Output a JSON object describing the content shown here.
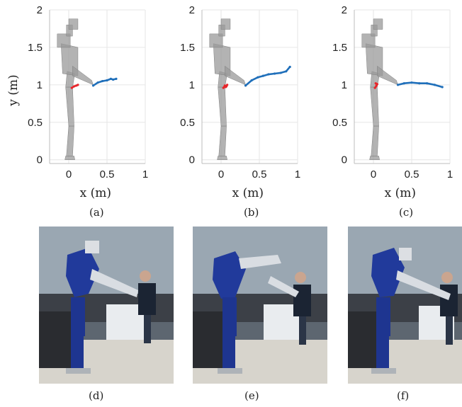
{
  "figure": {
    "captions": [
      "(a)",
      "(b)",
      "(c)",
      "(d)",
      "(e)",
      "(f)"
    ]
  },
  "chart_data": [
    {
      "type": "line",
      "panel": "(a)",
      "xlabel": "x (m)",
      "ylabel": "y (m)",
      "xlim": [
        -0.25,
        1.0
      ],
      "ylim": [
        -0.05,
        2.0
      ],
      "xticks": [
        0,
        0.5,
        1
      ],
      "xtick_labels": [
        "0",
        "0.5",
        "1"
      ],
      "yticks": [
        0,
        0.5,
        1,
        1.5,
        2
      ],
      "ytick_labels": [
        "0",
        "0.5",
        "1",
        "1.5",
        "2"
      ],
      "grid": true,
      "series": [
        {
          "color": "#e8262b",
          "x": [
            0.04,
            0.07,
            0.1,
            0.12
          ],
          "y": [
            0.96,
            0.98,
            0.99,
            1.0
          ]
        },
        {
          "color": "#1f6fba",
          "x": [
            0.32,
            0.38,
            0.44,
            0.5,
            0.55,
            0.58,
            0.62
          ],
          "y": [
            0.99,
            1.03,
            1.05,
            1.06,
            1.08,
            1.07,
            1.08
          ]
        }
      ]
    },
    {
      "type": "line",
      "panel": "(b)",
      "xlabel": "x (m)",
      "ylabel": "",
      "xlim": [
        -0.25,
        1.0
      ],
      "ylim": [
        -0.05,
        2.0
      ],
      "xticks": [
        0,
        0.5,
        1
      ],
      "xtick_labels": [
        "0",
        "0.5",
        "1"
      ],
      "yticks": [
        0,
        0.5,
        1,
        1.5,
        2
      ],
      "ytick_labels": [
        "0",
        "0.5",
        "1",
        "1.5",
        "2"
      ],
      "grid": true,
      "series": [
        {
          "color": "#e8262b",
          "x": [
            0.03,
            0.05,
            0.07,
            0.08,
            0.06
          ],
          "y": [
            0.96,
            0.99,
            0.98,
            1.0,
            0.97
          ]
        },
        {
          "color": "#1f6fba",
          "x": [
            0.32,
            0.4,
            0.48,
            0.55,
            0.62,
            0.7,
            0.78,
            0.85,
            0.9
          ],
          "y": [
            0.99,
            1.06,
            1.1,
            1.12,
            1.14,
            1.15,
            1.16,
            1.18,
            1.24
          ]
        }
      ]
    },
    {
      "type": "line",
      "panel": "(c)",
      "xlabel": "x (m)",
      "ylabel": "",
      "xlim": [
        -0.25,
        1.0
      ],
      "ylim": [
        -0.05,
        2.0
      ],
      "xticks": [
        0,
        0.5,
        1
      ],
      "xtick_labels": [
        "0",
        "0.5",
        "1"
      ],
      "yticks": [
        0,
        0.5,
        1,
        1.5,
        2
      ],
      "ytick_labels": [
        "0",
        "0.5",
        "1",
        "1.5",
        "2"
      ],
      "grid": true,
      "series": [
        {
          "color": "#e8262b",
          "x": [
            0.02,
            0.04,
            0.05,
            0.03
          ],
          "y": [
            0.96,
            0.99,
            1.01,
            1.02
          ]
        },
        {
          "color": "#1f6fba",
          "x": [
            0.32,
            0.4,
            0.5,
            0.6,
            0.7,
            0.8,
            0.9
          ],
          "y": [
            1.0,
            1.02,
            1.03,
            1.02,
            1.02,
            1.0,
            0.97
          ]
        }
      ]
    }
  ]
}
